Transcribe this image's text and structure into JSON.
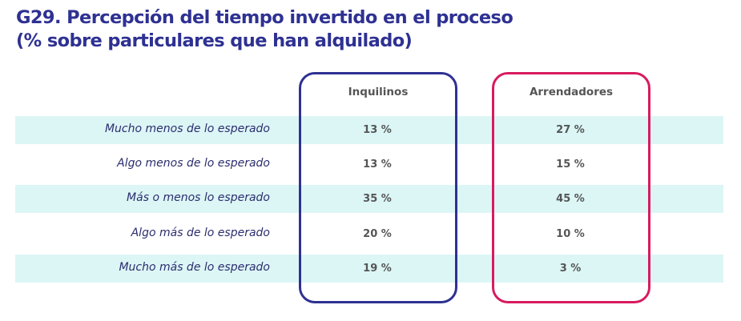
{
  "title_line1": "G29. Percepción del tiempo invertido en el proceso",
  "title_line2": "(% sobre particulares que han alquilado)",
  "colors": {
    "title": "#2e3192",
    "band": "#dcf6f6",
    "inquilinos_box": "#2e3192",
    "arrendadores_box": "#d81b5f"
  },
  "chart_data": {
    "type": "table",
    "columns": [
      "Inquilinos",
      "Arrendadores"
    ],
    "rows": [
      {
        "label": "Mucho menos de lo esperado",
        "values": [
          "13 %",
          "27 %"
        ]
      },
      {
        "label": "Algo menos de lo esperado",
        "values": [
          "13 %",
          "15 %"
        ]
      },
      {
        "label": "Más o menos lo esperado",
        "values": [
          "35 %",
          "45 %"
        ]
      },
      {
        "label": "Algo más de lo esperado",
        "values": [
          "20 %",
          "10 %"
        ]
      },
      {
        "label": "Mucho más de lo esperado",
        "values": [
          "19 %",
          "3 %"
        ]
      }
    ]
  }
}
